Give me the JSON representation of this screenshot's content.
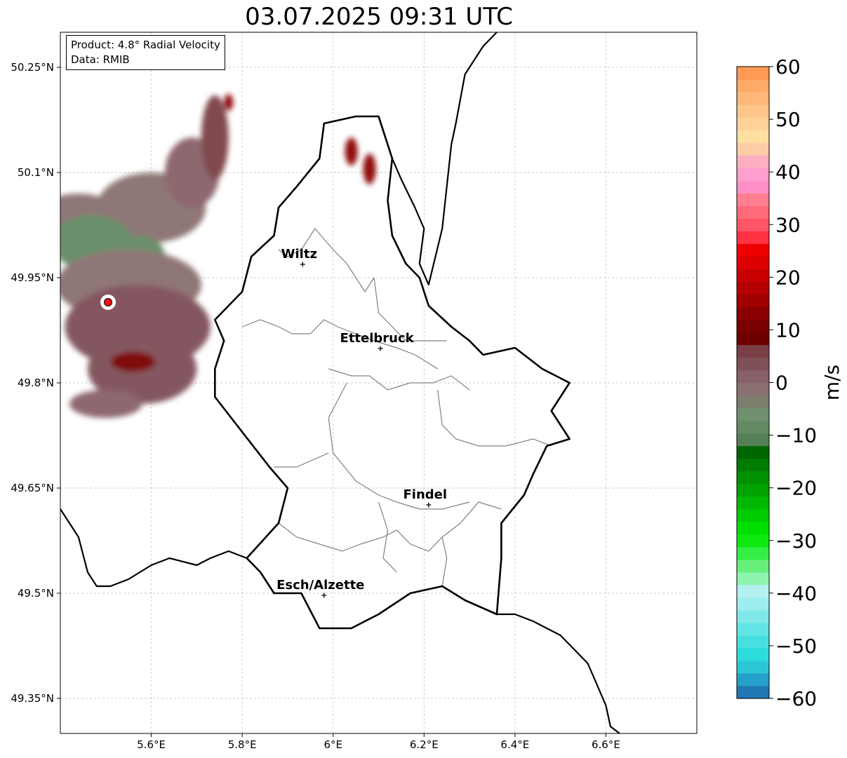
{
  "title": "03.07.2025 09:31 UTC",
  "info": {
    "product": "Product: 4.8° Radial Velocity",
    "source": "Data: RMIB"
  },
  "map": {
    "lon_range": [
      5.4,
      6.8
    ],
    "lat_range": [
      49.3,
      50.3
    ],
    "lon_ticks": [
      {
        "value": 5.6,
        "label": "5.6°E"
      },
      {
        "value": 5.8,
        "label": "5.8°E"
      },
      {
        "value": 6.0,
        "label": "6°E"
      },
      {
        "value": 6.2,
        "label": "6.2°E"
      },
      {
        "value": 6.4,
        "label": "6.4°E"
      },
      {
        "value": 6.6,
        "label": "6.6°E"
      }
    ],
    "lat_ticks": [
      {
        "value": 50.25,
        "label": "50.25°N"
      },
      {
        "value": 50.1,
        "label": "50.1°N"
      },
      {
        "value": 49.95,
        "label": "49.95°N"
      },
      {
        "value": 49.8,
        "label": "49.8°N"
      },
      {
        "value": 49.65,
        "label": "49.65°N"
      },
      {
        "value": 49.5,
        "label": "49.5°N"
      },
      {
        "value": 49.35,
        "label": "49.35°N"
      }
    ],
    "grid": true,
    "radar_site": {
      "lon": 5.505,
      "lat": 49.915
    },
    "cities": [
      {
        "name": "Wiltz",
        "lon": 5.933,
        "lat": 49.969
      },
      {
        "name": "Ettelbruck",
        "lon": 6.104,
        "lat": 49.849
      },
      {
        "name": "Findel",
        "lon": 6.21,
        "lat": 49.626
      },
      {
        "name": "Esch/Alzette",
        "lon": 5.98,
        "lat": 49.497
      }
    ],
    "country_border": [
      [
        5.81,
        49.55
      ],
      [
        5.84,
        49.53
      ],
      [
        5.87,
        49.5
      ],
      [
        5.93,
        49.5
      ],
      [
        5.97,
        49.45
      ],
      [
        6.04,
        49.45
      ],
      [
        6.1,
        49.47
      ],
      [
        6.17,
        49.5
      ],
      [
        6.24,
        49.51
      ],
      [
        6.29,
        49.49
      ],
      [
        6.36,
        49.47
      ],
      [
        6.37,
        49.55
      ],
      [
        6.37,
        49.6
      ],
      [
        6.42,
        49.64
      ],
      [
        6.44,
        49.67
      ],
      [
        6.47,
        49.71
      ],
      [
        6.52,
        49.72
      ],
      [
        6.48,
        49.76
      ],
      [
        6.52,
        49.8
      ],
      [
        6.46,
        49.82
      ],
      [
        6.4,
        49.85
      ],
      [
        6.33,
        49.84
      ],
      [
        6.3,
        49.86
      ],
      [
        6.26,
        49.88
      ],
      [
        6.21,
        49.91
      ],
      [
        6.19,
        49.95
      ],
      [
        6.16,
        49.97
      ],
      [
        6.13,
        50.01
      ],
      [
        6.12,
        50.06
      ],
      [
        6.13,
        50.12
      ],
      [
        6.1,
        50.18
      ],
      [
        6.05,
        50.18
      ],
      [
        5.98,
        50.17
      ],
      [
        5.97,
        50.12
      ],
      [
        5.92,
        50.08
      ],
      [
        5.88,
        50.05
      ],
      [
        5.87,
        50.01
      ],
      [
        5.82,
        49.98
      ],
      [
        5.8,
        49.93
      ],
      [
        5.74,
        49.89
      ],
      [
        5.76,
        49.86
      ],
      [
        5.74,
        49.82
      ],
      [
        5.74,
        49.78
      ],
      [
        5.8,
        49.73
      ],
      [
        5.86,
        49.68
      ],
      [
        5.9,
        49.65
      ],
      [
        5.88,
        49.6
      ],
      [
        5.81,
        49.55
      ]
    ],
    "outer_border_north": [
      [
        6.1,
        50.18
      ],
      [
        6.13,
        50.12
      ],
      [
        6.15,
        50.09
      ],
      [
        6.18,
        50.05
      ],
      [
        6.2,
        50.02
      ],
      [
        6.19,
        49.97
      ],
      [
        6.21,
        49.94
      ],
      [
        6.24,
        50.02
      ],
      [
        6.26,
        50.14
      ],
      [
        6.27,
        50.17
      ],
      [
        6.29,
        50.24
      ],
      [
        6.33,
        50.28
      ],
      [
        6.36,
        50.3
      ]
    ],
    "outer_border_southwest": [
      [
        5.4,
        49.62
      ],
      [
        5.44,
        49.58
      ],
      [
        5.46,
        49.53
      ],
      [
        5.48,
        49.51
      ],
      [
        5.51,
        49.51
      ],
      [
        5.55,
        49.52
      ],
      [
        5.6,
        49.54
      ],
      [
        5.64,
        49.55
      ],
      [
        5.7,
        49.54
      ],
      [
        5.73,
        49.55
      ],
      [
        5.77,
        49.56
      ],
      [
        5.81,
        49.55
      ]
    ],
    "outer_border_southeast": [
      [
        6.36,
        49.47
      ],
      [
        6.4,
        49.47
      ],
      [
        6.44,
        49.46
      ],
      [
        6.5,
        49.44
      ],
      [
        6.53,
        49.42
      ],
      [
        6.56,
        49.4
      ],
      [
        6.58,
        49.37
      ],
      [
        6.6,
        49.34
      ],
      [
        6.61,
        49.31
      ],
      [
        6.63,
        49.3
      ]
    ],
    "districts": [
      [
        [
          5.88,
          49.99
        ],
        [
          5.9,
          49.98
        ],
        [
          5.93,
          49.99
        ],
        [
          5.96,
          50.02
        ],
        [
          6.0,
          49.99
        ],
        [
          6.03,
          49.97
        ],
        [
          6.05,
          49.95
        ],
        [
          6.07,
          49.93
        ],
        [
          6.09,
          49.95
        ]
      ],
      [
        [
          5.8,
          49.88
        ],
        [
          5.84,
          49.89
        ],
        [
          5.88,
          49.88
        ],
        [
          5.91,
          49.87
        ],
        [
          5.95,
          49.87
        ],
        [
          5.98,
          49.89
        ],
        [
          6.01,
          49.88
        ],
        [
          6.05,
          49.87
        ],
        [
          6.09,
          49.86
        ],
        [
          6.14,
          49.85
        ],
        [
          6.18,
          49.84
        ],
        [
          6.23,
          49.82
        ]
      ],
      [
        [
          6.09,
          49.95
        ],
        [
          6.1,
          49.9
        ],
        [
          6.13,
          49.88
        ],
        [
          6.16,
          49.86
        ],
        [
          6.2,
          49.86
        ],
        [
          6.25,
          49.86
        ]
      ],
      [
        [
          5.99,
          49.82
        ],
        [
          6.04,
          49.81
        ],
        [
          6.08,
          49.81
        ],
        [
          6.12,
          49.79
        ],
        [
          6.17,
          49.8
        ],
        [
          6.22,
          49.8
        ],
        [
          6.26,
          49.81
        ],
        [
          6.3,
          49.79
        ]
      ],
      [
        [
          6.03,
          49.8
        ],
        [
          5.99,
          49.75
        ],
        [
          6.0,
          49.7
        ],
        [
          6.05,
          49.66
        ],
        [
          6.1,
          49.64
        ],
        [
          6.14,
          49.63
        ],
        [
          6.19,
          49.62
        ],
        [
          6.24,
          49.62
        ],
        [
          6.3,
          49.63
        ]
      ],
      [
        [
          5.87,
          49.68
        ],
        [
          5.92,
          49.68
        ],
        [
          5.99,
          49.7
        ]
      ],
      [
        [
          6.23,
          49.79
        ],
        [
          6.24,
          49.74
        ],
        [
          6.27,
          49.72
        ],
        [
          6.32,
          49.71
        ],
        [
          6.38,
          49.71
        ],
        [
          6.44,
          49.72
        ],
        [
          6.48,
          49.71
        ]
      ],
      [
        [
          5.88,
          49.6
        ],
        [
          5.92,
          49.58
        ],
        [
          5.97,
          49.57
        ],
        [
          6.02,
          49.56
        ],
        [
          6.06,
          49.57
        ],
        [
          6.11,
          49.58
        ],
        [
          6.14,
          49.59
        ],
        [
          6.17,
          49.57
        ],
        [
          6.21,
          49.56
        ],
        [
          6.24,
          49.58
        ],
        [
          6.28,
          49.6
        ],
        [
          6.32,
          49.63
        ],
        [
          6.37,
          49.62
        ]
      ],
      [
        [
          6.24,
          49.51
        ],
        [
          6.25,
          49.55
        ],
        [
          6.24,
          49.58
        ]
      ],
      [
        [
          6.1,
          49.63
        ],
        [
          6.12,
          49.59
        ],
        [
          6.11,
          49.55
        ],
        [
          6.14,
          49.53
        ]
      ]
    ]
  },
  "colorbar": {
    "unit": "m/s",
    "vmin": -60,
    "vmax": 60,
    "ticks": [
      {
        "value": 60,
        "label": "60"
      },
      {
        "value": 50,
        "label": "50"
      },
      {
        "value": 40,
        "label": "40"
      },
      {
        "value": 30,
        "label": "30"
      },
      {
        "value": 20,
        "label": "20"
      },
      {
        "value": 10,
        "label": "10"
      },
      {
        "value": 0,
        "label": "0"
      },
      {
        "value": -10,
        "label": "−10"
      },
      {
        "value": -20,
        "label": "−20"
      },
      {
        "value": -30,
        "label": "−30"
      },
      {
        "value": -40,
        "label": "−40"
      },
      {
        "value": -50,
        "label": "−50"
      },
      {
        "value": -60,
        "label": "−60"
      }
    ],
    "colors": [
      "#1f77b4",
      "#25a0c8",
      "#2cc7d6",
      "#2ddcdc",
      "#47e0e0",
      "#63e5e5",
      "#80e8e8",
      "#9deeee",
      "#b5f0f0",
      "#8ff3b0",
      "#66f07a",
      "#33ee44",
      "#0fe80f",
      "#00e000",
      "#00cc00",
      "#00b800",
      "#00a300",
      "#009000",
      "#007d00",
      "#006600",
      "#558055",
      "#648a64",
      "#709070",
      "#7e7e6e",
      "#8a7070",
      "#886068",
      "#7e5058",
      "#7a3f44",
      "#6e0000",
      "#7a0000",
      "#8a0000",
      "#a00000",
      "#b40000",
      "#c80000",
      "#dd0000",
      "#ef0000",
      "#ff3344",
      "#ff5566",
      "#ff6b7a",
      "#ff7f90",
      "#ff90c8",
      "#ff9fcf",
      "#ffb0c0",
      "#ffcca8",
      "#ffe0a0",
      "#ffd29a",
      "#ffc58a",
      "#ffb87a",
      "#ffaa66",
      "#ff9a55"
    ]
  },
  "echoes": [
    {
      "lon": 5.44,
      "lat": 50.03,
      "rx": 0.1,
      "ry": 0.04,
      "v": -2
    },
    {
      "lon": 5.6,
      "lat": 50.05,
      "rx": 0.12,
      "ry": 0.05,
      "v": -1
    },
    {
      "lon": 5.69,
      "lat": 50.1,
      "rx": 0.06,
      "ry": 0.05,
      "v": 2
    },
    {
      "lon": 5.74,
      "lat": 50.15,
      "rx": 0.03,
      "ry": 0.06,
      "v": 5
    },
    {
      "lon": 5.47,
      "lat": 50.0,
      "rx": 0.09,
      "ry": 0.04,
      "v": -9
    },
    {
      "lon": 5.58,
      "lat": 49.98,
      "rx": 0.05,
      "ry": 0.03,
      "v": -9
    },
    {
      "lon": 5.55,
      "lat": 49.94,
      "rx": 0.16,
      "ry": 0.05,
      "v": -1
    },
    {
      "lon": 5.57,
      "lat": 49.88,
      "rx": 0.16,
      "ry": 0.06,
      "v": 3
    },
    {
      "lon": 5.58,
      "lat": 49.82,
      "rx": 0.12,
      "ry": 0.05,
      "v": 4
    },
    {
      "lon": 5.56,
      "lat": 49.83,
      "rx": 0.05,
      "ry": 0.015,
      "v": 10
    },
    {
      "lon": 5.5,
      "lat": 49.77,
      "rx": 0.08,
      "ry": 0.02,
      "v": 2
    },
    {
      "lon": 6.04,
      "lat": 50.13,
      "rx": 0.014,
      "ry": 0.02,
      "v": 14
    },
    {
      "lon": 6.08,
      "lat": 50.105,
      "rx": 0.014,
      "ry": 0.022,
      "v": 14
    },
    {
      "lon": 5.77,
      "lat": 50.2,
      "rx": 0.01,
      "ry": 0.012,
      "v": 12
    }
  ]
}
